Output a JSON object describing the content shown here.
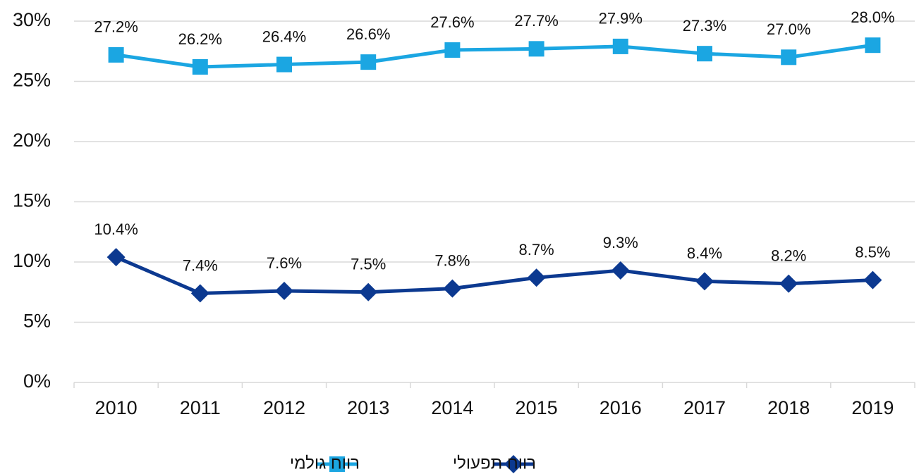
{
  "chart_data": {
    "type": "line",
    "categories": [
      "2010",
      "2011",
      "2012",
      "2013",
      "2014",
      "2015",
      "2016",
      "2017",
      "2018",
      "2019"
    ],
    "series": [
      {
        "name": "רווח גולמי",
        "color": "#1ba6e2",
        "marker": "square",
        "values": [
          27.2,
          26.2,
          26.4,
          26.6,
          27.6,
          27.7,
          27.9,
          27.3,
          27.0,
          28.0
        ],
        "value_labels": [
          "27.2%",
          "26.2%",
          "26.4%",
          "26.6%",
          "27.6%",
          "27.7%",
          "27.9%",
          "27.3%",
          "27.0%",
          "28.0%"
        ]
      },
      {
        "name": "רווח תפעולי",
        "color": "#0c3990",
        "marker": "diamond",
        "values": [
          10.4,
          7.4,
          7.6,
          7.5,
          7.8,
          8.7,
          9.3,
          8.4,
          8.2,
          8.5
        ],
        "value_labels": [
          "10.4%",
          "7.4%",
          "7.6%",
          "7.5%",
          "7.8%",
          "8.7%",
          "9.3%",
          "8.4%",
          "8.2%",
          "8.5%"
        ]
      }
    ],
    "ylim": [
      0,
      30
    ],
    "yticks": [
      {
        "value": 0,
        "label": "0%"
      },
      {
        "value": 5,
        "label": "5%"
      },
      {
        "value": 10,
        "label": "10%"
      },
      {
        "value": 15,
        "label": "15%"
      },
      {
        "value": 20,
        "label": "20%"
      },
      {
        "value": 25,
        "label": "25%"
      },
      {
        "value": 30,
        "label": "30%"
      }
    ],
    "grid": true,
    "legend": "bottom"
  }
}
